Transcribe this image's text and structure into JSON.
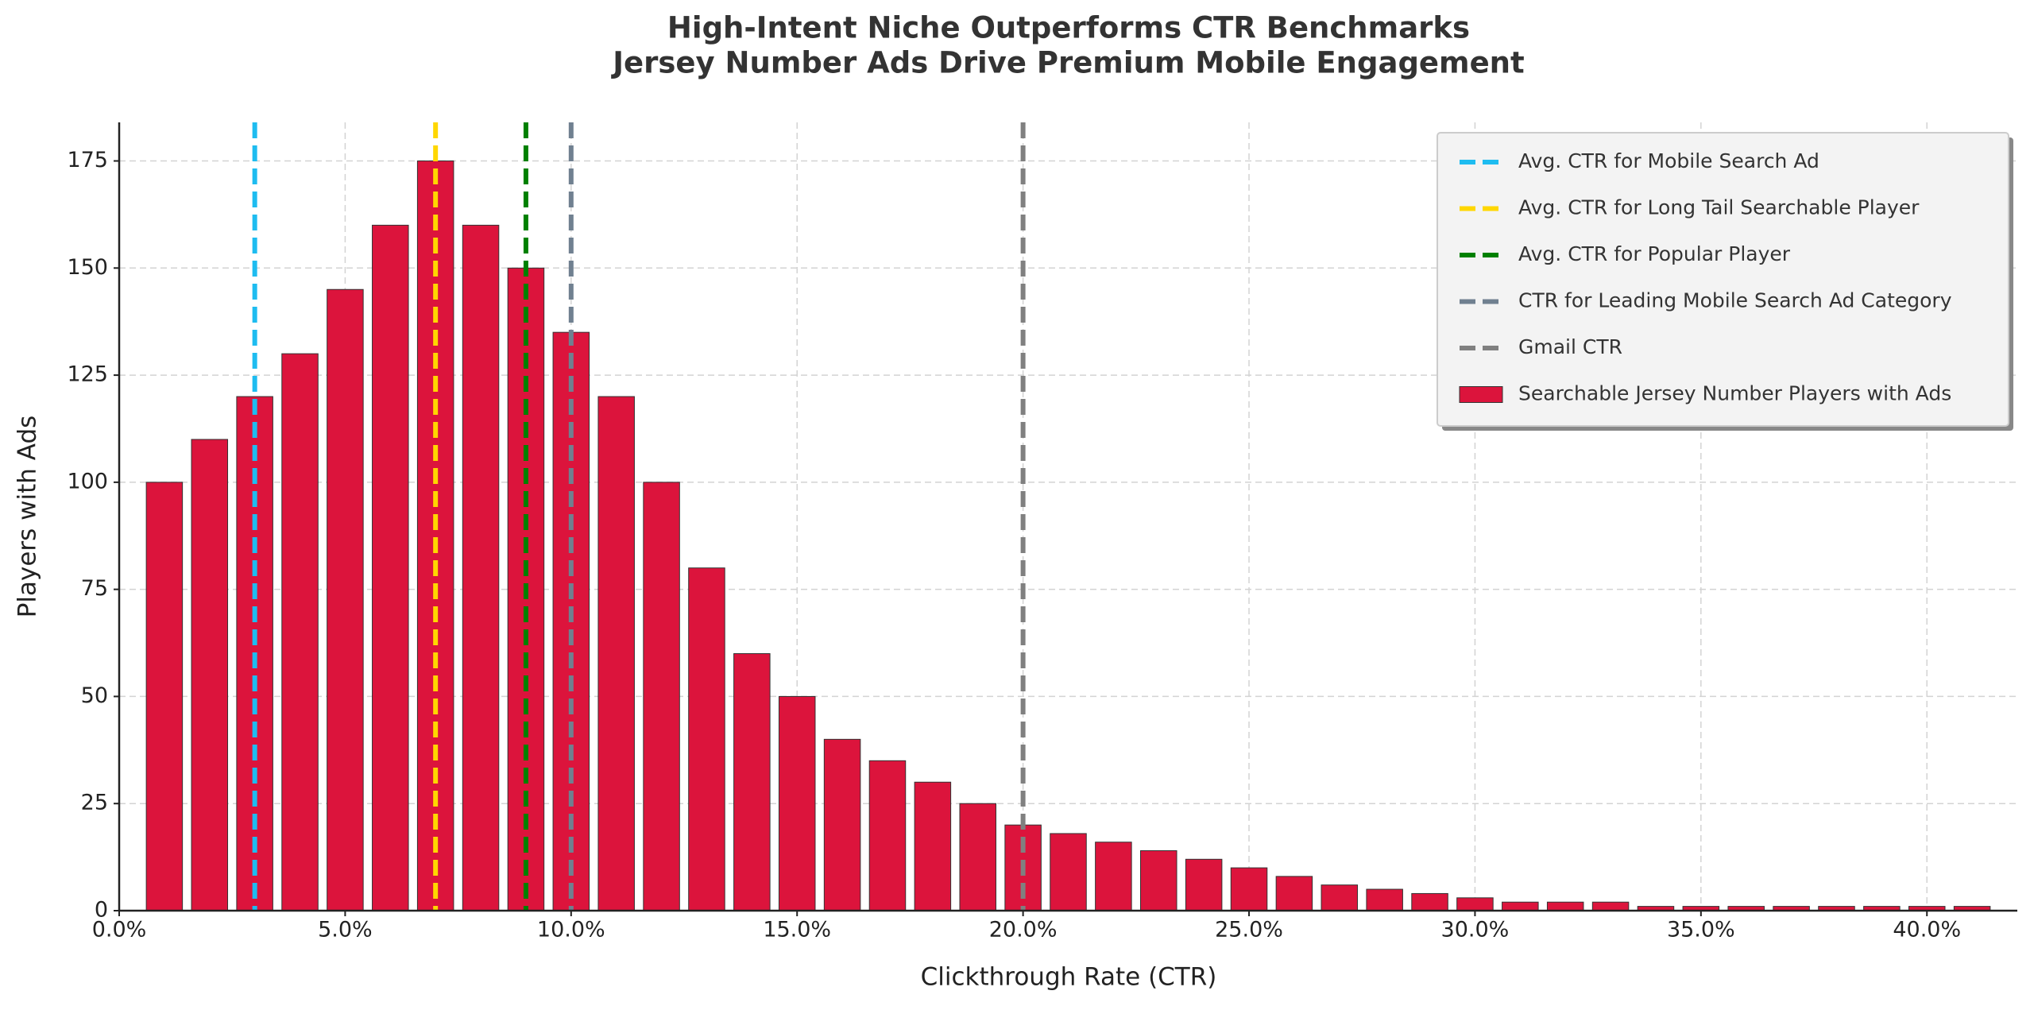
{
  "chart_data": {
    "type": "bar",
    "title": "High-Intent Niche Outperforms CTR Benchmarks",
    "subtitle": "Jersey Number Ads Drive Premium Mobile Engagement",
    "x_label": "Clickthrough Rate (CTR)",
    "y_label": "Players with Ads",
    "x": [
      1,
      2,
      3,
      4,
      5,
      6,
      7,
      8,
      9,
      10,
      11,
      12,
      13,
      14,
      15,
      16,
      17,
      18,
      19,
      20,
      21,
      22,
      23,
      24,
      25,
      26,
      27,
      28,
      29,
      30,
      31,
      32,
      33,
      34,
      35,
      36,
      37,
      38,
      39,
      40,
      41
    ],
    "series": [
      {
        "name": "Searchable Jersey Number Players with Ads",
        "color": "#dc143c",
        "values": [
          100,
          110,
          120,
          130,
          145,
          160,
          175,
          160,
          150,
          135,
          120,
          100,
          80,
          60,
          50,
          40,
          35,
          30,
          25,
          20,
          18,
          16,
          14,
          12,
          10,
          8,
          6,
          5,
          4,
          3,
          2,
          2,
          2,
          1,
          1,
          1,
          1,
          1,
          1,
          1,
          1
        ]
      }
    ],
    "reference_lines": [
      {
        "name": "Avg. CTR for Mobile Search Ad",
        "x": 3,
        "color": "#1ebcf0"
      },
      {
        "name": "Avg. CTR for Long Tail Searchable Player",
        "x": 7,
        "color": "#ffd700"
      },
      {
        "name": "Avg. CTR for Popular Player",
        "x": 9,
        "color": "#008000"
      },
      {
        "name": "CTR for Leading Mobile Search Ad Category",
        "x": 10,
        "color": "#708090"
      },
      {
        "name": "Gmail CTR",
        "x": 20,
        "color": "#808080"
      }
    ],
    "xlim": [
      0,
      42
    ],
    "ylim": [
      0,
      184
    ],
    "xticks": [
      {
        "value": 0,
        "label": "0.0%"
      },
      {
        "value": 5,
        "label": "5.0%"
      },
      {
        "value": 10,
        "label": "10.0%"
      },
      {
        "value": 15,
        "label": "15.0%"
      },
      {
        "value": 20,
        "label": "20.0%"
      },
      {
        "value": 25,
        "label": "25.0%"
      },
      {
        "value": 30,
        "label": "30.0%"
      },
      {
        "value": 35,
        "label": "35.0%"
      },
      {
        "value": 40,
        "label": "40.0%"
      }
    ],
    "yticks": [
      0,
      25,
      50,
      75,
      100,
      125,
      150,
      175
    ],
    "grid": true,
    "legend": "upper right"
  }
}
